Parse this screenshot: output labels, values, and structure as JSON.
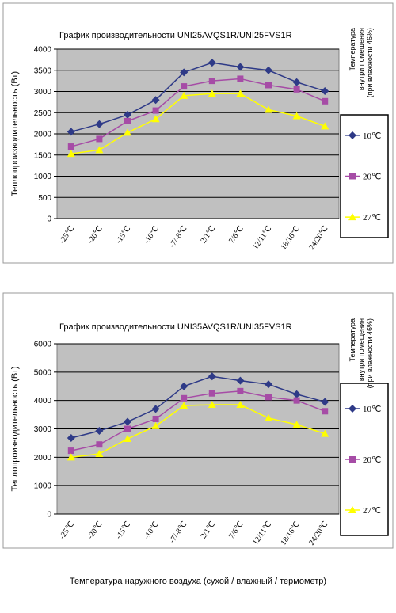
{
  "chart_data": [
    {
      "type": "line",
      "title": "График производительности UNI25AVQS1R/UNI25FVS1R",
      "y_label": "Теплопроизводительность (Вт)",
      "legend_title": [
        "Температура",
        "внутри помещения",
        "(при влажности 46%)"
      ],
      "categories": [
        "-25℃",
        "-20℃",
        "-15℃",
        "-10℃",
        "-7/-8℃",
        "2/1℃",
        "7/6℃",
        "12/11℃",
        "18/16℃",
        "24/20℃"
      ],
      "series": [
        {
          "name": "10℃",
          "color": "#2e3a87",
          "marker": "diamond",
          "values": [
            2050,
            2230,
            2450,
            2800,
            3450,
            3680,
            3580,
            3500,
            3220,
            3010
          ]
        },
        {
          "name": "20℃",
          "color": "#a64ca6",
          "marker": "square",
          "values": [
            1700,
            1880,
            2300,
            2550,
            3120,
            3250,
            3300,
            3150,
            3050,
            2770
          ]
        },
        {
          "name": "27℃",
          "color": "#ffff00",
          "marker": "triangle",
          "values": [
            1530,
            1620,
            2030,
            2350,
            2900,
            2950,
            2950,
            2570,
            2420,
            2180
          ]
        }
      ],
      "ylim": [
        0,
        4000
      ],
      "yticks": [
        0,
        500,
        1000,
        1500,
        2000,
        2500,
        3000,
        3500,
        4000
      ],
      "grid": true,
      "plot_background": "#c0c0c0",
      "legend": "right"
    },
    {
      "type": "line",
      "title": "График производительности UNI35AVQS1R/UNI35FVS1R",
      "y_label": "Теплопроизводительность (Вт)",
      "legend_title": [
        "Температура",
        "внутри помещения",
        "(при влажности 46%)"
      ],
      "categories": [
        "-25℃",
        "-20℃",
        "-15℃",
        "-10℃",
        "-7/-8℃",
        "2/1℃",
        "7/6℃",
        "12/11℃",
        "18/16℃",
        "24/20℃"
      ],
      "series": [
        {
          "name": "10℃",
          "color": "#2e3a87",
          "marker": "diamond",
          "values": [
            2680,
            2930,
            3250,
            3700,
            4500,
            4850,
            4700,
            4570,
            4220,
            3950
          ]
        },
        {
          "name": "20℃",
          "color": "#a64ca6",
          "marker": "square",
          "values": [
            2230,
            2450,
            3000,
            3350,
            4080,
            4250,
            4330,
            4120,
            4000,
            3620
          ]
        },
        {
          "name": "27℃",
          "color": "#ffff00",
          "marker": "triangle",
          "values": [
            2000,
            2120,
            2650,
            3100,
            3820,
            3850,
            3850,
            3380,
            3150,
            2830
          ]
        }
      ],
      "ylim": [
        0,
        6000
      ],
      "yticks": [
        0,
        1000,
        2000,
        3000,
        4000,
        5000,
        6000
      ],
      "grid": true,
      "plot_background": "#c0c0c0",
      "legend": "right"
    }
  ],
  "footer": {
    "text": "Температура наружного воздуха (сухой / влажный / термометр)"
  }
}
